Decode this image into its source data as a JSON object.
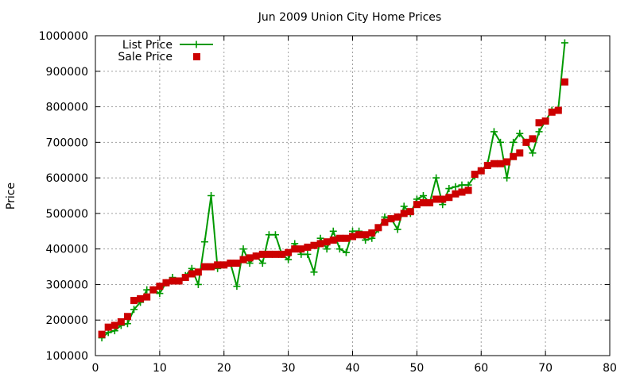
{
  "chart_data": {
    "type": "line",
    "title": "Jun 2009 Union City Home Prices",
    "xlabel": "",
    "ylabel": "Price",
    "xlim": [
      0,
      80
    ],
    "ylim": [
      100000,
      1000000
    ],
    "xticks": [
      "0",
      "10",
      "20",
      "30",
      "40",
      "50",
      "60",
      "70",
      "80"
    ],
    "yticks": [
      "100000",
      "200000",
      "300000",
      "400000",
      "500000",
      "600000",
      "700000",
      "800000",
      "900000",
      "1000000"
    ],
    "grid": true,
    "legend_position": "top-left",
    "x": [
      1,
      2,
      3,
      4,
      5,
      6,
      7,
      8,
      9,
      10,
      11,
      12,
      13,
      14,
      15,
      16,
      17,
      18,
      19,
      20,
      21,
      22,
      23,
      24,
      25,
      26,
      27,
      28,
      29,
      30,
      31,
      32,
      33,
      34,
      35,
      36,
      37,
      38,
      39,
      40,
      41,
      42,
      43,
      44,
      45,
      46,
      47,
      48,
      49,
      50,
      51,
      52,
      53,
      54,
      55,
      56,
      57,
      58,
      59,
      60,
      61,
      62,
      63,
      64,
      65,
      66,
      67,
      68,
      69,
      70,
      71,
      72,
      73
    ],
    "series": [
      {
        "name": "List Price",
        "style": "line+cross",
        "color": "#009900",
        "values": [
          150000,
          165000,
          170000,
          185000,
          190000,
          230000,
          250000,
          285000,
          285000,
          275000,
          305000,
          320000,
          310000,
          325000,
          345000,
          300000,
          420000,
          550000,
          345000,
          355000,
          360000,
          295000,
          400000,
          360000,
          380000,
          360000,
          440000,
          440000,
          385000,
          370000,
          415000,
          385000,
          385000,
          335000,
          430000,
          400000,
          450000,
          400000,
          390000,
          450000,
          450000,
          425000,
          430000,
          455000,
          490000,
          485000,
          455000,
          520000,
          500000,
          540000,
          550000,
          530000,
          600000,
          525000,
          570000,
          575000,
          580000,
          580000,
          605000,
          620000,
          640000,
          730000,
          700000,
          600000,
          700000,
          725000,
          700000,
          670000,
          730000,
          760000,
          790000,
          795000,
          980000
        ]
      },
      {
        "name": "Sale Price",
        "style": "square",
        "color": "#cc0000",
        "values": [
          160000,
          180000,
          185000,
          195000,
          210000,
          255000,
          260000,
          265000,
          285000,
          295000,
          305000,
          310000,
          310000,
          320000,
          330000,
          335000,
          350000,
          350000,
          355000,
          355000,
          360000,
          360000,
          370000,
          375000,
          380000,
          385000,
          385000,
          385000,
          385000,
          390000,
          400000,
          400000,
          405000,
          410000,
          415000,
          420000,
          425000,
          430000,
          430000,
          435000,
          440000,
          440000,
          445000,
          460000,
          475000,
          485000,
          490000,
          500000,
          505000,
          525000,
          530000,
          530000,
          540000,
          540000,
          545000,
          555000,
          560000,
          565000,
          610000,
          620000,
          635000,
          640000,
          640000,
          645000,
          660000,
          670000,
          700000,
          710000,
          755000,
          760000,
          785000,
          790000,
          870000
        ]
      }
    ]
  }
}
